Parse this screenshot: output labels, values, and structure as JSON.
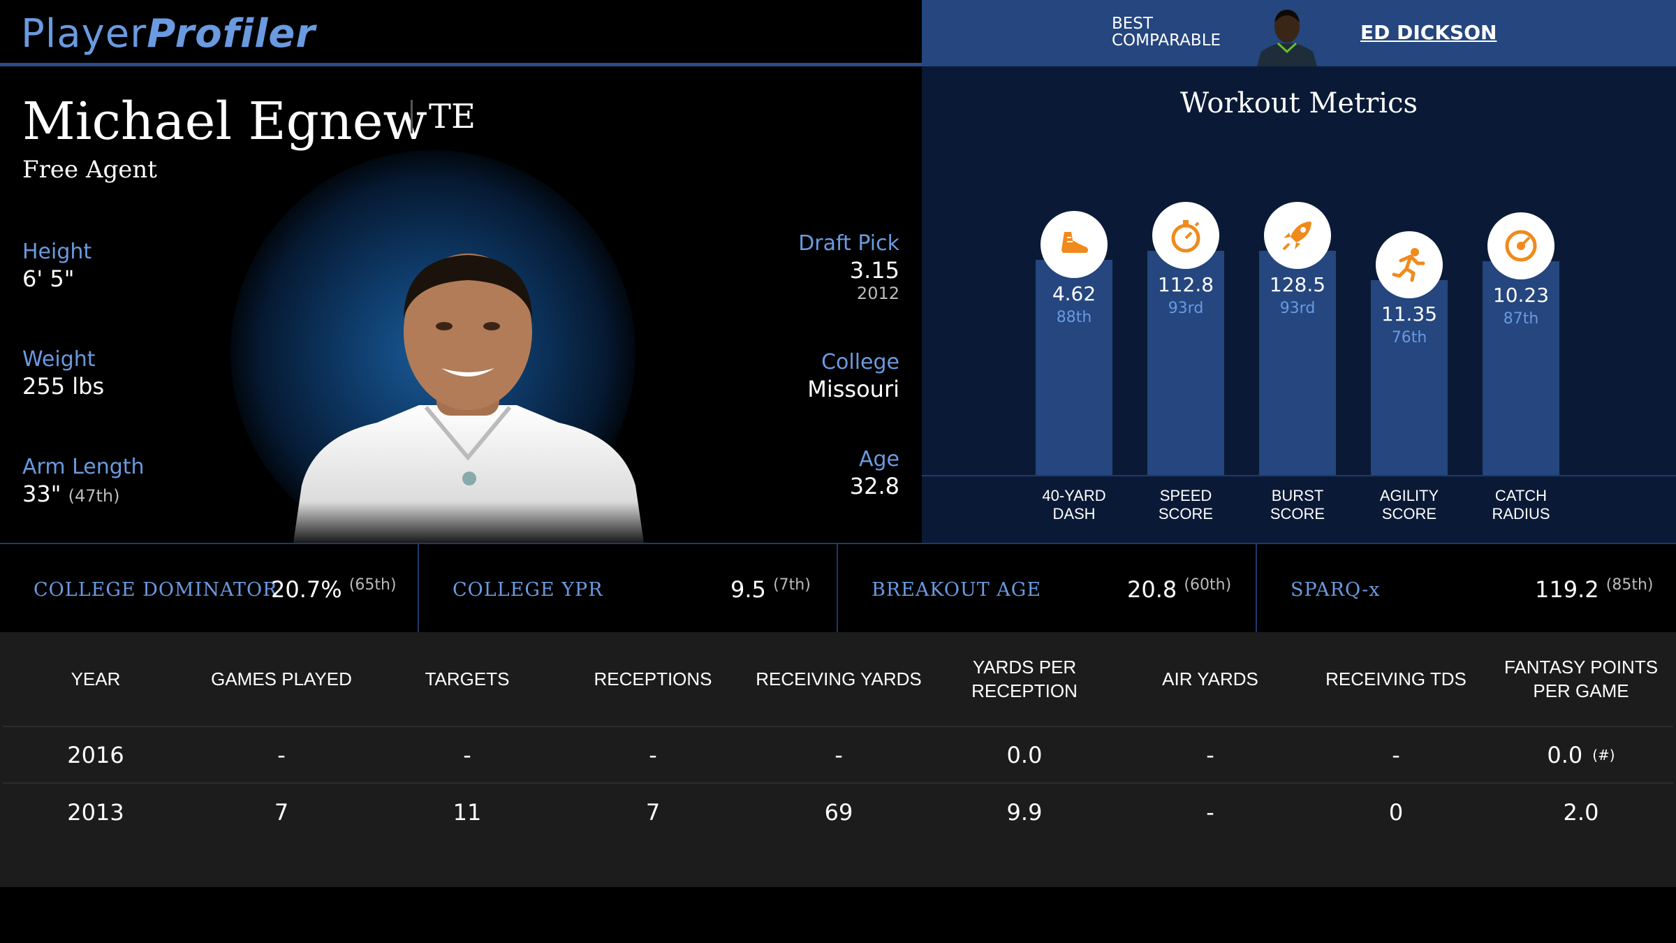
{
  "brand": {
    "part1": "Player",
    "part2": "Profiler"
  },
  "player": {
    "name": "Michael Egnew",
    "position": "TE",
    "team": "Free Agent",
    "height_label": "Height",
    "height": "6' 5\"",
    "weight_label": "Weight",
    "weight": "255 lbs",
    "arm_label": "Arm Length",
    "arm": "33\"",
    "arm_rank": "(47th)",
    "draft_label": "Draft Pick",
    "draft": "3.15",
    "draft_year": "2012",
    "college_label": "College",
    "college": "Missouri",
    "age_label": "Age",
    "age": "32.8"
  },
  "comparable": {
    "label_line1": "BEST",
    "label_line2": "COMPARABLE",
    "name": "ED DICKSON"
  },
  "workout": {
    "title": "Workout Metrics",
    "metrics": [
      {
        "value": "4.62",
        "rank": "88th",
        "label1": "40-YARD",
        "label2": "DASH",
        "icon": "shoe-icon",
        "percentile": 88
      },
      {
        "value": "112.8",
        "rank": "93rd",
        "label1": "SPEED",
        "label2": "SCORE",
        "icon": "stopwatch-icon",
        "percentile": 93
      },
      {
        "value": "128.5",
        "rank": "93rd",
        "label1": "BURST",
        "label2": "SCORE",
        "icon": "rocket-icon",
        "percentile": 93
      },
      {
        "value": "11.35",
        "rank": "76th",
        "label1": "AGILITY",
        "label2": "SCORE",
        "icon": "runner-icon",
        "percentile": 76
      },
      {
        "value": "10.23",
        "rank": "87th",
        "label1": "CATCH",
        "label2": "RADIUS",
        "icon": "target-icon",
        "percentile": 87
      }
    ]
  },
  "strip": [
    {
      "label": "COLLEGE DOMINATOR",
      "value": "20.7%",
      "rank": "(65th)"
    },
    {
      "label": "COLLEGE YPR",
      "value": "9.5",
      "rank": "(7th)"
    },
    {
      "label": "BREAKOUT AGE",
      "value": "20.8",
      "rank": "(60th)"
    },
    {
      "label": "SPARQ-x",
      "value": "119.2",
      "rank": "(85th)"
    }
  ],
  "table": {
    "headers": [
      "YEAR",
      "GAMES PLAYED",
      "TARGETS",
      "RECEPTIONS",
      "RECEIVING YARDS",
      "YARDS PER RECEPTION",
      "AIR YARDS",
      "RECEIVING TDS",
      "FANTASY POINTS PER GAME"
    ],
    "rows": [
      [
        "2016",
        "-",
        "-",
        "-",
        "-",
        "0.0",
        "-",
        "-",
        "0.0"
      ],
      [
        "2013",
        "7",
        "11",
        "7",
        "69",
        "9.9",
        "-",
        "0",
        "2.0"
      ]
    ],
    "footnote_mark": "(#)"
  },
  "colors": {
    "accent": "#6a9ae0",
    "bar": "#25467e",
    "panel": "#0a1a36",
    "icon": "#f08a1c"
  }
}
